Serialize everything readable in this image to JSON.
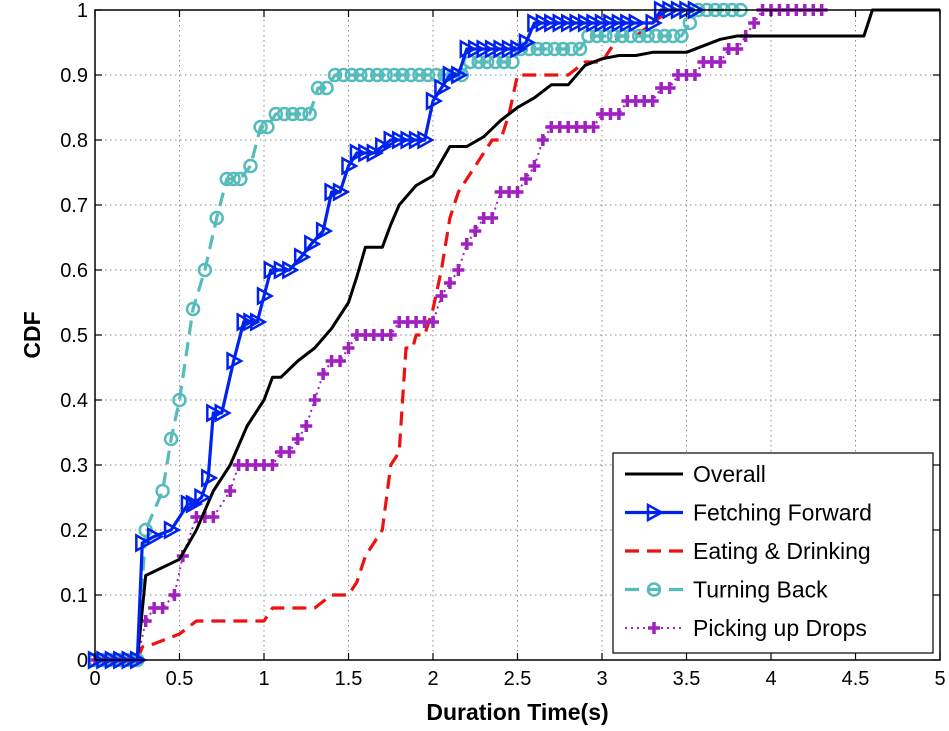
{
  "chart_data": {
    "type": "line",
    "title": "",
    "xlabel": "Duration Time(s)",
    "ylabel": "CDF",
    "xlim": [
      0,
      5
    ],
    "ylim": [
      0,
      1
    ],
    "xticks": [
      "0",
      "0.5",
      "1",
      "1.5",
      "2",
      "2.5",
      "3",
      "3.5",
      "4",
      "4.5",
      "5"
    ],
    "yticks": [
      "0",
      "0.1",
      "0.2",
      "0.3",
      "0.4",
      "0.5",
      "0.6",
      "0.7",
      "0.8",
      "0.9",
      "1"
    ],
    "grid": true,
    "legend_position": "bottom-right",
    "series": [
      {
        "name": "Overall",
        "color": "#000000",
        "dash": "solid",
        "marker": "none",
        "x": [
          0,
          0.25,
          0.3,
          0.5,
          0.6,
          0.7,
          0.8,
          0.9,
          1.0,
          1.05,
          1.1,
          1.2,
          1.3,
          1.4,
          1.5,
          1.55,
          1.6,
          1.7,
          1.75,
          1.8,
          1.9,
          2.0,
          2.1,
          2.2,
          2.3,
          2.4,
          2.5,
          2.6,
          2.7,
          2.8,
          2.9,
          3.0,
          3.1,
          3.2,
          3.3,
          3.4,
          3.5,
          3.6,
          3.7,
          3.8,
          3.9,
          4.0,
          4.1,
          4.2,
          4.3,
          4.4,
          4.55,
          4.6,
          4.7,
          5.0
        ],
        "y": [
          0,
          0,
          0.13,
          0.155,
          0.2,
          0.26,
          0.3,
          0.36,
          0.4,
          0.435,
          0.435,
          0.46,
          0.48,
          0.51,
          0.55,
          0.59,
          0.635,
          0.635,
          0.67,
          0.7,
          0.73,
          0.745,
          0.79,
          0.79,
          0.805,
          0.83,
          0.85,
          0.865,
          0.885,
          0.885,
          0.915,
          0.925,
          0.93,
          0.93,
          0.935,
          0.935,
          0.935,
          0.945,
          0.955,
          0.96,
          0.96,
          0.96,
          0.96,
          0.96,
          0.96,
          0.96,
          0.96,
          1.0,
          1.0,
          1.0
        ]
      },
      {
        "name": "Fetching Forward",
        "color": "#0022ee",
        "dash": "solid",
        "marker": "triangle-right",
        "x": [
          0,
          0.05,
          0.1,
          0.15,
          0.2,
          0.25,
          0.28,
          0.35,
          0.45,
          0.55,
          0.58,
          0.63,
          0.67,
          0.7,
          0.75,
          0.82,
          0.88,
          0.92,
          0.96,
          1.0,
          1.04,
          1.1,
          1.15,
          1.22,
          1.28,
          1.35,
          1.4,
          1.45,
          1.5,
          1.55,
          1.6,
          1.65,
          1.7,
          1.75,
          1.8,
          1.85,
          1.9,
          1.95,
          2.0,
          2.05,
          2.1,
          2.15,
          2.2,
          2.25,
          2.3,
          2.35,
          2.4,
          2.45,
          2.5,
          2.55,
          2.6,
          2.65,
          2.7,
          2.75,
          2.8,
          2.85,
          2.9,
          2.95,
          3.0,
          3.05,
          3.1,
          3.15,
          3.2,
          3.3,
          3.35,
          3.4,
          3.45,
          3.5,
          3.55
        ],
        "y": [
          0,
          0,
          0,
          0,
          0,
          0,
          0.18,
          0.19,
          0.2,
          0.24,
          0.24,
          0.25,
          0.28,
          0.38,
          0.38,
          0.46,
          0.52,
          0.52,
          0.52,
          0.56,
          0.6,
          0.6,
          0.6,
          0.62,
          0.64,
          0.66,
          0.72,
          0.72,
          0.76,
          0.78,
          0.78,
          0.78,
          0.79,
          0.8,
          0.8,
          0.8,
          0.8,
          0.8,
          0.86,
          0.88,
          0.9,
          0.9,
          0.94,
          0.94,
          0.94,
          0.94,
          0.94,
          0.94,
          0.94,
          0.95,
          0.98,
          0.98,
          0.98,
          0.98,
          0.98,
          0.98,
          0.98,
          0.98,
          0.98,
          0.98,
          0.98,
          0.98,
          0.98,
          0.98,
          1.0,
          1.0,
          1.0,
          1.0,
          1.0
        ]
      },
      {
        "name": "Eating & Drinking",
        "color": "#ee1111",
        "dash": "dashed",
        "marker": "none",
        "x": [
          0,
          0.25,
          0.28,
          0.35,
          0.4,
          0.5,
          0.6,
          0.65,
          0.7,
          0.8,
          0.9,
          0.95,
          1.0,
          1.05,
          1.1,
          1.2,
          1.3,
          1.4,
          1.45,
          1.5,
          1.55,
          1.6,
          1.65,
          1.7,
          1.75,
          1.8,
          1.82,
          1.84,
          1.88,
          1.9,
          1.95,
          2.0,
          2.05,
          2.1,
          2.15,
          2.2,
          2.25,
          2.3,
          2.35,
          2.4,
          2.45,
          2.5,
          2.55,
          2.6,
          2.65,
          2.7,
          2.8,
          2.9,
          3.0,
          3.05,
          3.1,
          3.2,
          3.3,
          3.4
        ],
        "y": [
          0,
          0,
          0.02,
          0.025,
          0.03,
          0.04,
          0.06,
          0.06,
          0.06,
          0.06,
          0.06,
          0.06,
          0.06,
          0.08,
          0.08,
          0.08,
          0.08,
          0.1,
          0.1,
          0.1,
          0.12,
          0.16,
          0.18,
          0.2,
          0.3,
          0.32,
          0.4,
          0.48,
          0.48,
          0.5,
          0.5,
          0.54,
          0.6,
          0.68,
          0.72,
          0.74,
          0.76,
          0.78,
          0.8,
          0.8,
          0.84,
          0.9,
          0.9,
          0.9,
          0.9,
          0.9,
          0.9,
          0.92,
          0.92,
          0.94,
          0.96,
          0.96,
          0.98,
          1.0
        ]
      },
      {
        "name": "Turning Back",
        "color": "#55bbbb",
        "dash": "dashed",
        "marker": "circle",
        "x": [
          0,
          0.05,
          0.1,
          0.15,
          0.2,
          0.25,
          0.3,
          0.4,
          0.45,
          0.5,
          0.58,
          0.65,
          0.72,
          0.78,
          0.82,
          0.86,
          0.92,
          0.98,
          1.02,
          1.07,
          1.12,
          1.17,
          1.22,
          1.27,
          1.32,
          1.37,
          1.42,
          1.47,
          1.52,
          1.57,
          1.62,
          1.67,
          1.72,
          1.77,
          1.82,
          1.87,
          1.92,
          1.97,
          2.02,
          2.07,
          2.12,
          2.17,
          2.22,
          2.27,
          2.32,
          2.37,
          2.42,
          2.47,
          2.52,
          2.57,
          2.62,
          2.67,
          2.72,
          2.77,
          2.82,
          2.87,
          2.92,
          2.97,
          3.02,
          3.07,
          3.12,
          3.17,
          3.22,
          3.27,
          3.32,
          3.37,
          3.42,
          3.47,
          3.52,
          3.57,
          3.62,
          3.67,
          3.72,
          3.77,
          3.82
        ],
        "y": [
          0,
          0,
          0,
          0,
          0,
          0,
          0.2,
          0.26,
          0.34,
          0.4,
          0.54,
          0.6,
          0.68,
          0.74,
          0.74,
          0.74,
          0.76,
          0.82,
          0.82,
          0.84,
          0.84,
          0.84,
          0.84,
          0.84,
          0.88,
          0.88,
          0.9,
          0.9,
          0.9,
          0.9,
          0.9,
          0.9,
          0.9,
          0.9,
          0.9,
          0.9,
          0.9,
          0.9,
          0.9,
          0.9,
          0.9,
          0.9,
          0.92,
          0.92,
          0.92,
          0.92,
          0.92,
          0.92,
          0.94,
          0.94,
          0.94,
          0.94,
          0.94,
          0.94,
          0.94,
          0.94,
          0.96,
          0.96,
          0.96,
          0.96,
          0.96,
          0.96,
          0.96,
          0.96,
          0.96,
          0.96,
          0.96,
          0.96,
          0.98,
          1.0,
          1.0,
          1.0,
          1.0,
          1.0,
          1.0
        ]
      },
      {
        "name": "Picking up Drops",
        "color": "#a020c0",
        "dash": "dotted",
        "marker": "plus",
        "x": [
          0,
          0.05,
          0.1,
          0.15,
          0.2,
          0.25,
          0.3,
          0.35,
          0.4,
          0.47,
          0.52,
          0.6,
          0.65,
          0.7,
          0.8,
          0.85,
          0.9,
          0.95,
          1.0,
          1.05,
          1.1,
          1.15,
          1.2,
          1.25,
          1.3,
          1.35,
          1.4,
          1.45,
          1.5,
          1.55,
          1.6,
          1.65,
          1.7,
          1.75,
          1.8,
          1.85,
          1.9,
          1.95,
          2.0,
          2.05,
          2.1,
          2.15,
          2.2,
          2.25,
          2.3,
          2.35,
          2.4,
          2.45,
          2.5,
          2.55,
          2.6,
          2.65,
          2.7,
          2.75,
          2.8,
          2.85,
          2.9,
          2.95,
          3.0,
          3.05,
          3.1,
          3.15,
          3.2,
          3.25,
          3.3,
          3.35,
          3.4,
          3.45,
          3.5,
          3.55,
          3.6,
          3.65,
          3.7,
          3.75,
          3.8,
          3.85,
          3.9,
          3.95,
          4.0,
          4.05,
          4.1,
          4.15,
          4.2,
          4.25,
          4.3
        ],
        "y": [
          0,
          0,
          0,
          0,
          0,
          0,
          0.06,
          0.08,
          0.08,
          0.1,
          0.16,
          0.22,
          0.22,
          0.22,
          0.26,
          0.3,
          0.3,
          0.3,
          0.3,
          0.3,
          0.32,
          0.32,
          0.34,
          0.36,
          0.4,
          0.44,
          0.46,
          0.46,
          0.48,
          0.5,
          0.5,
          0.5,
          0.5,
          0.5,
          0.52,
          0.52,
          0.52,
          0.52,
          0.52,
          0.56,
          0.58,
          0.6,
          0.64,
          0.66,
          0.68,
          0.68,
          0.72,
          0.72,
          0.72,
          0.74,
          0.76,
          0.8,
          0.82,
          0.82,
          0.82,
          0.82,
          0.82,
          0.82,
          0.84,
          0.84,
          0.84,
          0.86,
          0.86,
          0.86,
          0.86,
          0.88,
          0.88,
          0.9,
          0.9,
          0.9,
          0.92,
          0.92,
          0.92,
          0.94,
          0.94,
          0.96,
          0.98,
          1.0,
          1.0,
          1.0,
          1.0,
          1.0,
          1.0,
          1.0,
          1.0
        ]
      }
    ]
  }
}
